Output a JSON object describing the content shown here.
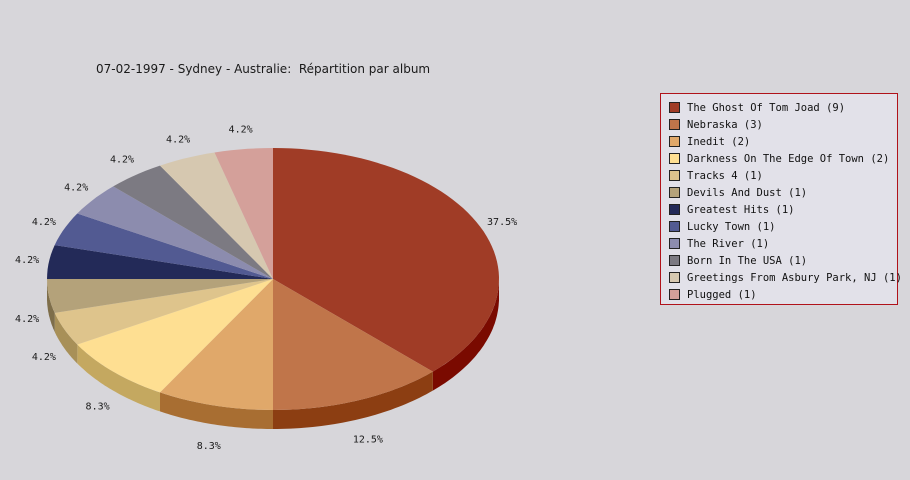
{
  "chart_data": {
    "type": "pie",
    "title": "07-02-1997 - Sydney - Australie:  Répartition par album",
    "slices": [
      {
        "label": "The Ghost Of Tom Joad (9)",
        "value": 9,
        "percent_label": "37.5%",
        "color": "#a03c26",
        "side_color": "#7a0a00"
      },
      {
        "label": "Nebraska (3)",
        "value": 3,
        "percent_label": "12.5%",
        "color": "#c0754a",
        "side_color": "#8c3e12"
      },
      {
        "label": "Inedit (2)",
        "value": 2,
        "percent_label": "8.3%",
        "color": "#e0a86a",
        "side_color": "#a86e32"
      },
      {
        "label": "Darkness On The Edge Of Town (2)",
        "value": 2,
        "percent_label": "8.3%",
        "color": "#fedf92",
        "side_color": "#c4a860"
      },
      {
        "label": "Tracks 4 (1)",
        "value": 1,
        "percent_label": "4.2%",
        "color": "#dec48c",
        "side_color": "#a89058"
      },
      {
        "label": "Devils And Dust (1)",
        "value": 1,
        "percent_label": "4.2%",
        "color": "#b4a27a",
        "side_color": "#7e6e4a"
      },
      {
        "label": "Greatest Hits (1)",
        "value": 1,
        "percent_label": "4.2%",
        "color": "#232a58",
        "side_color": "#11163a"
      },
      {
        "label": "Lucky Town (1)",
        "value": 1,
        "percent_label": "4.2%",
        "color": "#525a92",
        "side_color": "#363c6a"
      },
      {
        "label": "The River (1)",
        "value": 1,
        "percent_label": "4.2%",
        "color": "#8c8cae",
        "side_color": "#62627e"
      },
      {
        "label": "Born In The USA (1)",
        "value": 1,
        "percent_label": "4.2%",
        "color": "#7c7a82",
        "side_color": "#55535a"
      },
      {
        "label": "Greetings From Asbury Park, NJ (1)",
        "value": 1,
        "percent_label": "4.2%",
        "color": "#d6c8b0",
        "side_color": "#a8987e"
      },
      {
        "label": "Plugged (1)",
        "value": 1,
        "percent_label": "4.2%",
        "color": "#d4a09a",
        "side_color": "#a0706a"
      }
    ],
    "start_angle_deg": 90,
    "direction": "clockwise",
    "legend_position": "right"
  }
}
